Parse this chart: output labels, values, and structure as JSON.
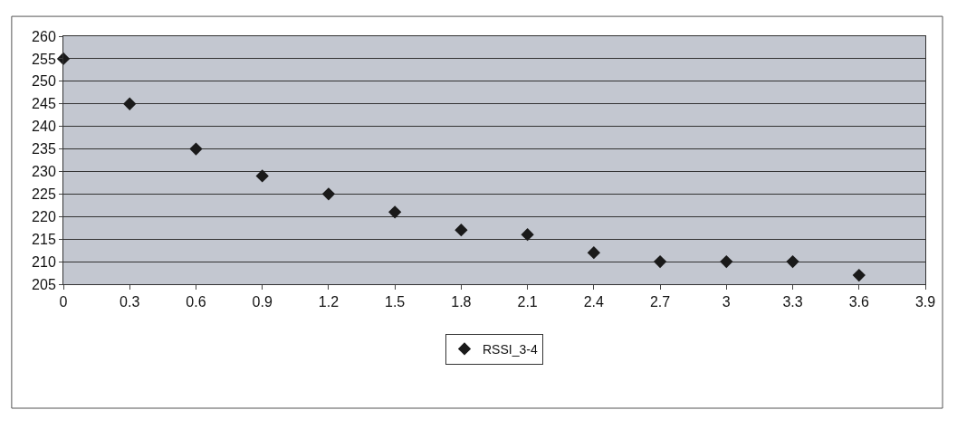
{
  "chart_data": {
    "type": "scatter",
    "x": [
      0,
      0.3,
      0.6,
      0.9,
      1.2,
      1.5,
      1.8,
      2.1,
      2.4,
      2.7,
      3,
      3.3,
      3.6
    ],
    "series": [
      {
        "name": "RSSI_3-4",
        "color": "#1a1a1a",
        "values": [
          255,
          245,
          235,
          229,
          225,
          221,
          217,
          216,
          212,
          210,
          210,
          210,
          207
        ]
      }
    ],
    "xlim": [
      0,
      3.9
    ],
    "xticks": [
      0,
      0.3,
      0.6,
      0.9,
      1.2,
      1.5,
      1.8,
      2.1,
      2.4,
      2.7,
      3,
      3.3,
      3.6,
      3.9
    ],
    "ylim": [
      205,
      260
    ],
    "yticks": [
      205,
      210,
      215,
      220,
      225,
      230,
      235,
      240,
      245,
      250,
      255,
      260
    ],
    "grid": "y",
    "legend": "bottom",
    "marker": "diamond"
  }
}
